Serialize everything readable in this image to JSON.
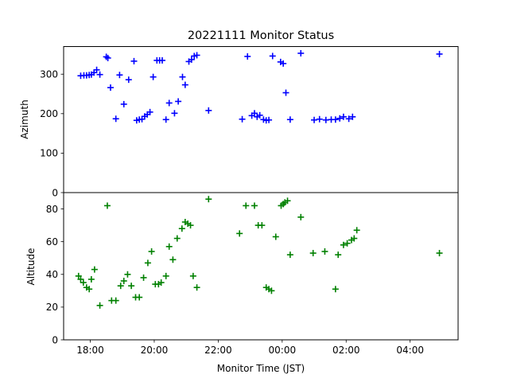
{
  "chart_data": {
    "type": "scatter",
    "title": "20221111 Monitor Status",
    "xlabel": "Monitor Time (JST)",
    "x_ticks": [
      "18:00",
      "20:00",
      "22:00",
      "00:00",
      "02:00",
      "04:00"
    ],
    "xlim": [
      "17:10",
      "29:30"
    ],
    "marker": "+",
    "subplots": [
      {
        "name": "azimuth",
        "ylabel": "Azimuth",
        "ylim": [
          0,
          370
        ],
        "y_ticks": [
          0,
          100,
          200,
          300
        ],
        "color": "#0000ff",
        "points": [
          [
            "17:42",
            296
          ],
          [
            "17:48",
            297
          ],
          [
            "17:53",
            297
          ],
          [
            "17:58",
            298
          ],
          [
            "18:02",
            299
          ],
          [
            "18:07",
            304
          ],
          [
            "18:12",
            311
          ],
          [
            "18:18",
            299
          ],
          [
            "18:30",
            344
          ],
          [
            "18:33",
            341
          ],
          [
            "18:38",
            266
          ],
          [
            "18:48",
            187
          ],
          [
            "18:55",
            298
          ],
          [
            "19:03",
            224
          ],
          [
            "19:12",
            286
          ],
          [
            "19:22",
            333
          ],
          [
            "19:27",
            183
          ],
          [
            "19:32",
            185
          ],
          [
            "19:37",
            186
          ],
          [
            "19:42",
            193
          ],
          [
            "19:47",
            198
          ],
          [
            "19:52",
            204
          ],
          [
            "19:58",
            293
          ],
          [
            "20:05",
            335
          ],
          [
            "20:10",
            335
          ],
          [
            "20:15",
            335
          ],
          [
            "20:22",
            185
          ],
          [
            "20:28",
            227
          ],
          [
            "20:38",
            201
          ],
          [
            "20:45",
            231
          ],
          [
            "20:53",
            293
          ],
          [
            "20:58",
            273
          ],
          [
            "21:05",
            332
          ],
          [
            "21:10",
            337
          ],
          [
            "21:15",
            346
          ],
          [
            "21:20",
            348
          ],
          [
            "21:42",
            208
          ],
          [
            "22:45",
            186
          ],
          [
            "22:55",
            345
          ],
          [
            "23:03",
            195
          ],
          [
            "23:08",
            201
          ],
          [
            "23:13",
            192
          ],
          [
            "23:18",
            196
          ],
          [
            "23:25",
            185
          ],
          [
            "23:30",
            183
          ],
          [
            "23:35",
            184
          ],
          [
            "23:42",
            346
          ],
          [
            "23:57",
            331
          ],
          [
            "24:02",
            327
          ],
          [
            "24:07",
            253
          ],
          [
            "24:15",
            185
          ],
          [
            "25:00",
            184
          ],
          [
            "25:10",
            186
          ],
          [
            "25:22",
            184
          ],
          [
            "25:32",
            185
          ],
          [
            "25:40",
            185
          ],
          [
            "25:48",
            188
          ],
          [
            "25:55",
            192
          ],
          [
            "26:05",
            187
          ],
          [
            "26:12",
            192
          ],
          [
            "24:35",
            353
          ],
          [
            "28:55",
            351
          ]
        ]
      },
      {
        "name": "altitude",
        "ylabel": "Altitude",
        "ylim": [
          0,
          90
        ],
        "y_ticks": [
          0,
          20,
          40,
          60,
          80
        ],
        "color": "#008000",
        "points": [
          [
            "17:38",
            39
          ],
          [
            "17:42",
            37
          ],
          [
            "17:47",
            35
          ],
          [
            "17:53",
            32
          ],
          [
            "17:58",
            31
          ],
          [
            "18:02",
            37
          ],
          [
            "18:08",
            43
          ],
          [
            "18:18",
            21
          ],
          [
            "18:32",
            82
          ],
          [
            "18:40",
            24
          ],
          [
            "18:48",
            24
          ],
          [
            "18:57",
            33
          ],
          [
            "19:03",
            36
          ],
          [
            "19:10",
            40
          ],
          [
            "19:17",
            33
          ],
          [
            "19:25",
            26
          ],
          [
            "19:32",
            26
          ],
          [
            "19:40",
            38
          ],
          [
            "19:48",
            47
          ],
          [
            "19:55",
            54
          ],
          [
            "20:02",
            34
          ],
          [
            "20:08",
            34
          ],
          [
            "20:13",
            35
          ],
          [
            "20:22",
            39
          ],
          [
            "20:28",
            57
          ],
          [
            "20:35",
            49
          ],
          [
            "20:43",
            62
          ],
          [
            "20:52",
            68
          ],
          [
            "20:58",
            72
          ],
          [
            "21:03",
            71
          ],
          [
            "21:08",
            70
          ],
          [
            "21:13",
            39
          ],
          [
            "21:20",
            32
          ],
          [
            "21:42",
            86
          ],
          [
            "22:40",
            65
          ],
          [
            "22:52",
            82
          ],
          [
            "23:08",
            82
          ],
          [
            "23:15",
            70
          ],
          [
            "23:22",
            70
          ],
          [
            "23:30",
            32
          ],
          [
            "23:35",
            31
          ],
          [
            "23:40",
            30
          ],
          [
            "23:48",
            63
          ],
          [
            "23:58",
            82
          ],
          [
            "24:02",
            83
          ],
          [
            "24:05",
            84
          ],
          [
            "24:10",
            85
          ],
          [
            "24:15",
            52
          ],
          [
            "24:35",
            75
          ],
          [
            "24:58",
            53
          ],
          [
            "25:20",
            54
          ],
          [
            "25:40",
            31
          ],
          [
            "25:45",
            52
          ],
          [
            "25:55",
            58
          ],
          [
            "26:02",
            59
          ],
          [
            "26:10",
            61
          ],
          [
            "26:15",
            62
          ],
          [
            "26:20",
            67
          ],
          [
            "28:55",
            53
          ]
        ]
      }
    ]
  }
}
